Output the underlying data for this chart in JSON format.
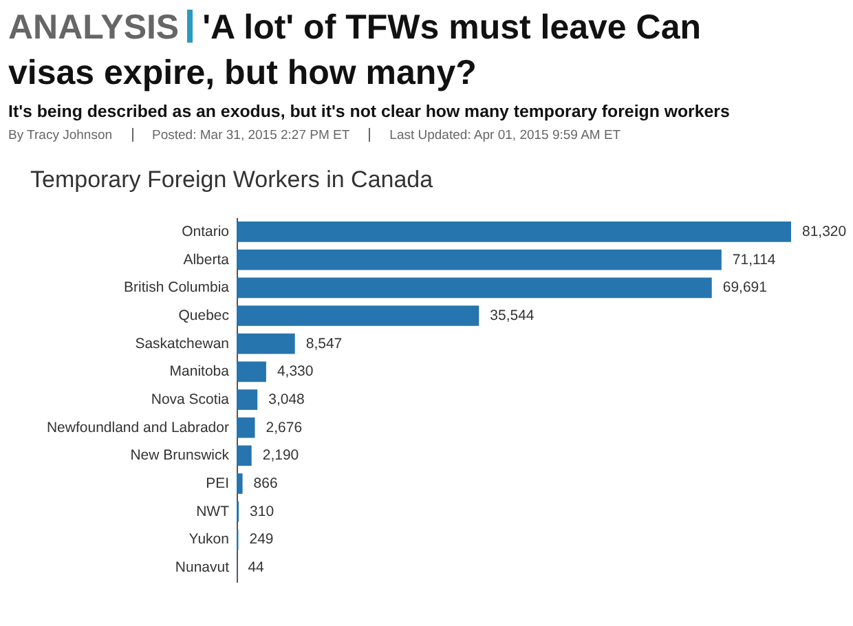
{
  "chart_data": {
    "type": "bar",
    "orientation": "horizontal",
    "title": "Temporary Foreign Workers in Canada",
    "annotations": [
      "ANALYSIS",
      "'A lot' of TFWs must leave Can",
      "visas expire, but how many?",
      "It's being described as an exodus, but it's not clear how many temporary foreign workers",
      "By Tracy Johnson",
      "Posted: Mar 31, 2015 2:27 PM ET",
      "Last Updated: Apr 01, 2015 9:59 AM ET"
    ],
    "categories": [
      "Ontario",
      "Alberta",
      "British Columbia",
      "Quebec",
      "Saskatchewan",
      "Manitoba",
      "Nova Scotia",
      "Newfoundland and Labrador",
      "New Brunswick",
      "PEI",
      "NWT",
      "Yukon",
      "Nunavut"
    ],
    "values": [
      81320,
      71114,
      69691,
      35544,
      8547,
      4330,
      3048,
      2676,
      2190,
      866,
      310,
      249,
      44
    ],
    "value_labels": [
      "81,320",
      "71,114",
      "69,691",
      "35,544",
      "8,547",
      "4,330",
      "3,048",
      "2,676",
      "2,190",
      "866",
      "310",
      "249",
      "44"
    ],
    "color": "#2675ae",
    "grid": false
  }
}
